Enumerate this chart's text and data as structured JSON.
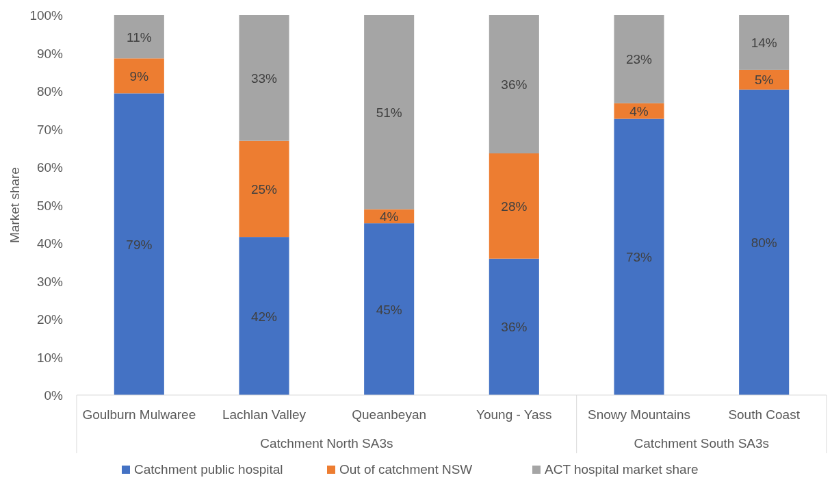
{
  "chart_data": {
    "type": "bar",
    "stacked": true,
    "ylabel": "Market share",
    "categories": [
      "Goulburn Mulwaree",
      "Lachlan Valley",
      "Queanbeyan",
      "Young - Yass",
      "Snowy Mountains",
      "South Coast"
    ],
    "series": [
      {
        "name": "Catchment public hospital",
        "color": "#4472c4",
        "values": [
          79.4,
          41.6,
          45.2,
          35.9,
          72.7,
          80.4
        ],
        "value_labels": [
          "79%",
          "42%",
          "45%",
          "36%",
          "73%",
          "80%"
        ]
      },
      {
        "name": "Out of catchment NSW",
        "color": "#ed7d31",
        "values": [
          9.2,
          25.3,
          3.7,
          27.7,
          4.1,
          5.2
        ],
        "value_labels": [
          "9%",
          "25%",
          "4%",
          "28%",
          "4%",
          "5%"
        ]
      },
      {
        "name": "ACT hospital market share",
        "color": "#a5a5a5",
        "values": [
          11.4,
          33.1,
          51.1,
          36.4,
          23.2,
          14.4
        ],
        "value_labels": [
          "11%",
          "33%",
          "51%",
          "36%",
          "23%",
          "14%"
        ]
      }
    ],
    "ylim": [
      0,
      100
    ],
    "yticks": [
      {
        "value": 0,
        "label": "0%"
      },
      {
        "value": 10,
        "label": "10%"
      },
      {
        "value": 20,
        "label": "20%"
      },
      {
        "value": 30,
        "label": "30%"
      },
      {
        "value": 40,
        "label": "40%"
      },
      {
        "value": 50,
        "label": "50%"
      },
      {
        "value": 60,
        "label": "60%"
      },
      {
        "value": 70,
        "label": "70%"
      },
      {
        "value": 80,
        "label": "80%"
      },
      {
        "value": 90,
        "label": "90%"
      },
      {
        "value": 100,
        "label": "100%"
      }
    ],
    "annotations": [
      "Catchment North SA3s",
      "Catchment South SA3s"
    ],
    "legend": "bottom"
  }
}
